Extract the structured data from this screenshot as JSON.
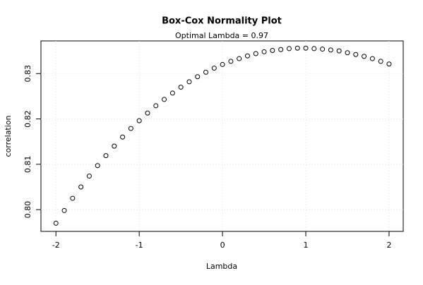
{
  "chart_data": {
    "type": "scatter",
    "title": "Box-Cox Normality Plot",
    "subtitle": "Optimal Lambda = 0.97",
    "x_label": "Lambda",
    "y_label": "correlation",
    "x": [
      -2,
      -1.9,
      -1.8,
      -1.7,
      -1.6,
      -1.5,
      -1.4,
      -1.3,
      -1.2,
      -1.1,
      -1,
      -0.9,
      -0.8,
      -0.7,
      -0.6,
      -0.5,
      -0.4,
      -0.3,
      -0.2,
      -0.1,
      0,
      0.1,
      0.2,
      0.3,
      0.4,
      0.5,
      0.6,
      0.7,
      0.8,
      0.9,
      1,
      1.1,
      1.2,
      1.3,
      1.4,
      1.5,
      1.6,
      1.7,
      1.8,
      1.9,
      2
    ],
    "values": [
      0.797,
      0.7998,
      0.8025,
      0.805,
      0.8074,
      0.8097,
      0.8119,
      0.814,
      0.816,
      0.8179,
      0.8196,
      0.8213,
      0.8229,
      0.8243,
      0.8257,
      0.827,
      0.8282,
      0.8293,
      0.8303,
      0.8312,
      0.832,
      0.8327,
      0.8333,
      0.8339,
      0.8344,
      0.8348,
      0.8351,
      0.8353,
      0.8355,
      0.8356,
      0.8356,
      0.8355,
      0.8354,
      0.8352,
      0.835,
      0.8346,
      0.8342,
      0.8338,
      0.8333,
      0.8327,
      0.8321
    ],
    "color": "#000000",
    "xlim": [
      -2.18,
      2.17
    ],
    "xticks": [
      -2,
      -1,
      0,
      1,
      2
    ],
    "ylim": [
      0.7952,
      0.8372
    ],
    "yticks": [
      {
        "value": 0.8,
        "label": "0.80"
      },
      0.81,
      0.82,
      0.83
    ],
    "grid": true
  }
}
